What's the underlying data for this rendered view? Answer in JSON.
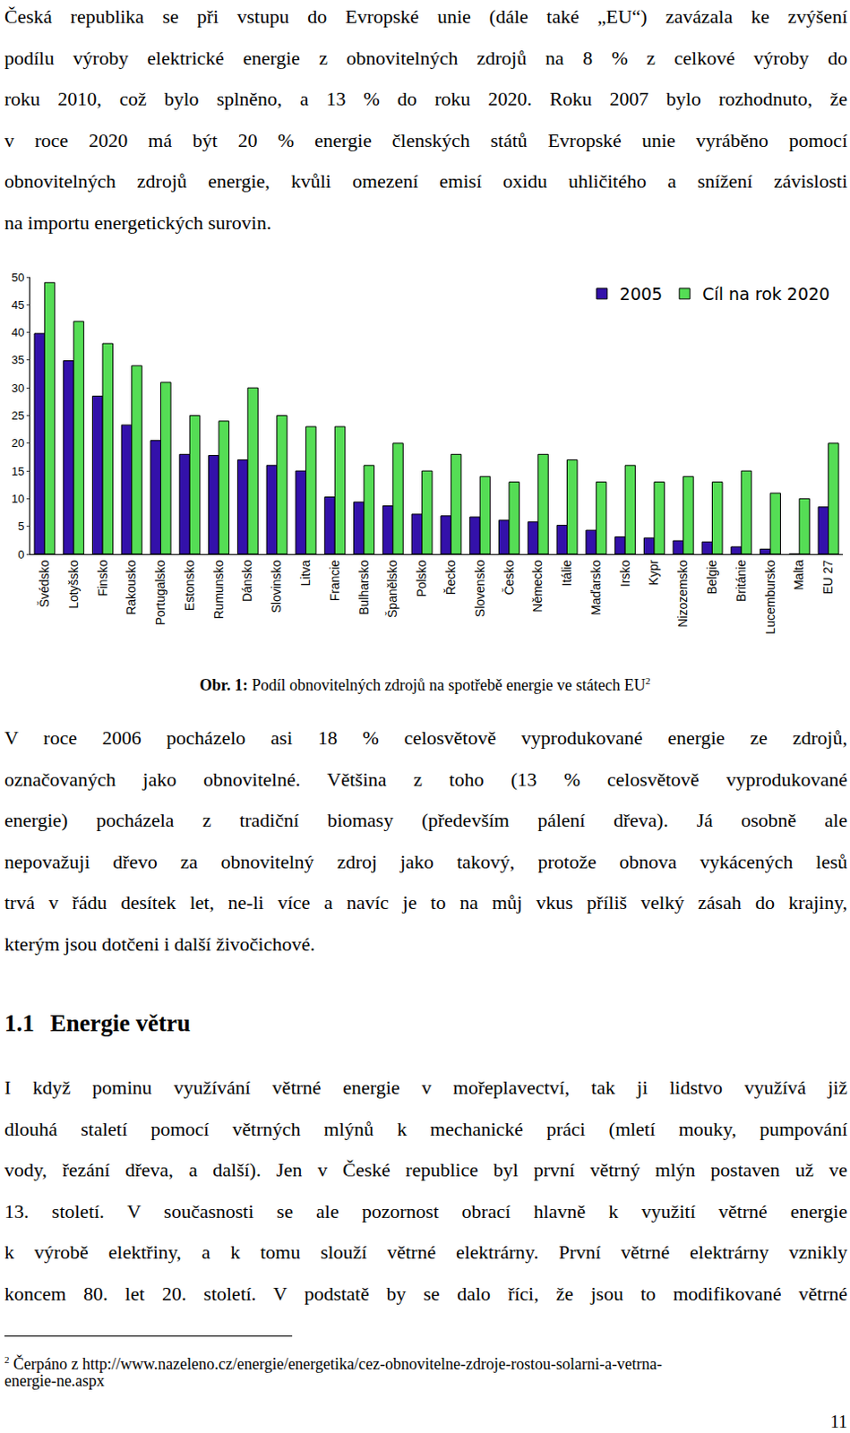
{
  "paragraph_1": [
    "Česká republika se při vstupu do Evropské unie (dále také „EU“) zavázala ke zvýšení",
    "podílu výroby elektrické energie z obnovitelných zdrojů na 8 % z celkové výroby do",
    "roku 2010, což bylo splněno, a 13 % do roku 2020. Roku 2007 bylo rozhodnuto, že",
    "v roce 2020 má být 20 % energie členských států Evropské unie vyráběno pomocí",
    "obnovitelných zdrojů energie, kvůli omezení emisí oxidu uhličitého a snížení závislosti",
    "na importu energetických surovin."
  ],
  "chart_data": {
    "type": "bar",
    "categories": [
      "Švédsko",
      "Lotyšsko",
      "Finsko",
      "Rakousko",
      "Portugalsko",
      "Estonsko",
      "Rumunsko",
      "Dánsko",
      "Slovinsko",
      "Litva",
      "Francie",
      "Bulharsko",
      "Španělsko",
      "Polsko",
      "Řecko",
      "Slovensko",
      "Česko",
      "Německo",
      "Itálie",
      "Maďarsko",
      "Irsko",
      "Kypr",
      "Nizozemsko",
      "Belgie",
      "Británie",
      "Lucembursko",
      "Malta",
      "EU 27"
    ],
    "series": [
      {
        "name": "2005",
        "color": "#3311aa",
        "values": [
          39.8,
          34.9,
          28.5,
          23.3,
          20.5,
          18,
          17.8,
          17,
          16,
          15,
          10.3,
          9.4,
          8.7,
          7.2,
          6.9,
          6.7,
          6.1,
          5.8,
          5.2,
          4.3,
          3.1,
          2.9,
          2.4,
          2.2,
          1.3,
          0.9,
          0,
          8.5
        ]
      },
      {
        "name": "Cíl na rok 2020",
        "color": "#55dd55",
        "values": [
          49,
          42,
          38,
          34,
          31,
          25,
          24,
          30,
          25,
          23,
          23,
          16,
          20,
          15,
          18,
          14,
          13,
          18,
          17,
          13,
          16,
          13,
          14,
          13,
          15,
          11,
          10,
          20
        ]
      }
    ],
    "ylim": [
      0,
      50
    ],
    "yticks": [
      0,
      5,
      10,
      15,
      20,
      25,
      30,
      35,
      40,
      45,
      50
    ],
    "grid": false,
    "legend": "top right"
  },
  "caption": {
    "label": "Obr. 1:",
    "text": "Podíl obnovitelných zdrojů na spotřebě energie ve státech EU",
    "footnote_ref": "2"
  },
  "paragraph_2": [
    "V roce 2006 pocházelo asi 18 % celosvětově vyprodukované energie ze zdrojů,",
    "označovaných jako obnovitelné. Většina z toho (13 % celosvětově vyprodukované",
    "energie) pocházela z tradiční biomasy (především pálení dřeva). Já osobně ale",
    "nepovažuji dřevo za obnovitelný zdroj jako takový, protože obnova vykácených lesů",
    "trvá v řádu desítek let, ne-li více a navíc je to na můj vkus příliš velký zásah do krajiny,",
    "kterým jsou dotčeni i další živočichové."
  ],
  "section": {
    "number": "1.1",
    "title": "Energie větru"
  },
  "paragraph_3": [
    "I když pominu využívání větrné energie v mořeplavectví, tak ji lidstvo využívá již",
    "dlouhá staletí pomocí větrných mlýnů k mechanické práci (mletí mouky, pumpování",
    "vody, řezání dřeva, a další). Jen v České republice byl první větrný mlýn postaven už ve",
    "13. století. V současnosti se ale pozornost obrací hlavně k využití větrné energie",
    "k výrobě elektřiny, a k tomu slouží větrné elektrárny. První větrné elektrárny vznikly",
    "koncem 80. let 20. století. V podstatě by se dalo říci, že jsou to modifikované větrné"
  ],
  "footnote": {
    "marker": "2",
    "lines": [
      "Čerpáno z http://www.nazeleno.cz/energie/energetika/cez-obnovitelne-zdroje-rostou-solarni-a-vetrna-",
      "energie-ne.aspx"
    ]
  },
  "page_number": "11"
}
